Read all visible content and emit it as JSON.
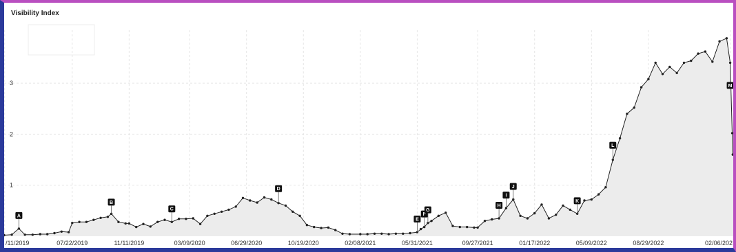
{
  "chart_data": {
    "type": "area",
    "title": "Visibility Index",
    "xlabel": "",
    "ylabel": "",
    "ylim": [
      0,
      4.2
    ],
    "yticks": [
      1,
      2,
      3
    ],
    "xlim": [
      "2019-03-10",
      "2023-02-12"
    ],
    "xtick_labels": [
      "/11/2019",
      "07/22/2019",
      "11/11/2019",
      "03/09/2020",
      "06/29/2020",
      "10/19/2020",
      "02/08/2021",
      "05/31/2021",
      "09/27/2021",
      "01/17/2022",
      "05/09/2022",
      "08/29/2022",
      "02/06/202"
    ],
    "xtick_dates": [
      "2019-03-11",
      "2019-07-22",
      "2019-11-11",
      "2020-03-09",
      "2020-06-29",
      "2020-10-19",
      "2021-02-08",
      "2021-05-31",
      "2021-09-27",
      "2022-01-17",
      "2022-05-09",
      "2022-08-29",
      "2023-02-06"
    ],
    "grid": true,
    "series": [
      {
        "color": "#222222",
        "fill": "#ececec",
        "points": [
          [
            "2019-03-10",
            0.02
          ],
          [
            "2019-03-25",
            0.03
          ],
          [
            "2019-04-08",
            0.15
          ],
          [
            "2019-04-20",
            0.03
          ],
          [
            "2019-05-05",
            0.03
          ],
          [
            "2019-05-20",
            0.04
          ],
          [
            "2019-06-03",
            0.04
          ],
          [
            "2019-06-17",
            0.06
          ],
          [
            "2019-07-01",
            0.09
          ],
          [
            "2019-07-15",
            0.08
          ],
          [
            "2019-07-22",
            0.26
          ],
          [
            "2019-08-05",
            0.28
          ],
          [
            "2019-08-19",
            0.28
          ],
          [
            "2019-09-02",
            0.32
          ],
          [
            "2019-09-16",
            0.36
          ],
          [
            "2019-09-30",
            0.38
          ],
          [
            "2019-10-07",
            0.44
          ],
          [
            "2019-10-21",
            0.28
          ],
          [
            "2019-11-04",
            0.25
          ],
          [
            "2019-11-11",
            0.25
          ],
          [
            "2019-11-25",
            0.18
          ],
          [
            "2019-12-09",
            0.24
          ],
          [
            "2019-12-23",
            0.19
          ],
          [
            "2020-01-06",
            0.28
          ],
          [
            "2020-01-20",
            0.32
          ],
          [
            "2020-02-03",
            0.28
          ],
          [
            "2020-02-17",
            0.34
          ],
          [
            "2020-03-02",
            0.34
          ],
          [
            "2020-03-16",
            0.35
          ],
          [
            "2020-03-30",
            0.24
          ],
          [
            "2020-04-13",
            0.4
          ],
          [
            "2020-04-27",
            0.44
          ],
          [
            "2020-05-11",
            0.48
          ],
          [
            "2020-05-25",
            0.52
          ],
          [
            "2020-06-08",
            0.58
          ],
          [
            "2020-06-22",
            0.75
          ],
          [
            "2020-07-06",
            0.7
          ],
          [
            "2020-07-20",
            0.66
          ],
          [
            "2020-08-03",
            0.76
          ],
          [
            "2020-08-17",
            0.72
          ],
          [
            "2020-08-31",
            0.65
          ],
          [
            "2020-09-14",
            0.6
          ],
          [
            "2020-09-28",
            0.48
          ],
          [
            "2020-10-12",
            0.4
          ],
          [
            "2020-10-26",
            0.22
          ],
          [
            "2020-11-09",
            0.18
          ],
          [
            "2020-11-23",
            0.16
          ],
          [
            "2020-12-07",
            0.17
          ],
          [
            "2020-12-21",
            0.12
          ],
          [
            "2021-01-04",
            0.05
          ],
          [
            "2021-01-18",
            0.04
          ],
          [
            "2021-02-08",
            0.04
          ],
          [
            "2021-02-22",
            0.04
          ],
          [
            "2021-03-08",
            0.05
          ],
          [
            "2021-03-22",
            0.05
          ],
          [
            "2021-04-05",
            0.04
          ],
          [
            "2021-04-19",
            0.05
          ],
          [
            "2021-05-03",
            0.05
          ],
          [
            "2021-05-17",
            0.06
          ],
          [
            "2021-05-31",
            0.08
          ],
          [
            "2021-06-07",
            0.14
          ],
          [
            "2021-06-14",
            0.18
          ],
          [
            "2021-06-21",
            0.26
          ],
          [
            "2021-06-28",
            0.3
          ],
          [
            "2021-07-12",
            0.4
          ],
          [
            "2021-07-26",
            0.46
          ],
          [
            "2021-08-09",
            0.2
          ],
          [
            "2021-08-23",
            0.18
          ],
          [
            "2021-09-06",
            0.18
          ],
          [
            "2021-09-20",
            0.17
          ],
          [
            "2021-09-27",
            0.17
          ],
          [
            "2021-10-11",
            0.3
          ],
          [
            "2021-10-25",
            0.33
          ],
          [
            "2021-11-08",
            0.35
          ],
          [
            "2021-11-22",
            0.55
          ],
          [
            "2021-12-06",
            0.72
          ],
          [
            "2021-12-20",
            0.4
          ],
          [
            "2022-01-03",
            0.35
          ],
          [
            "2022-01-17",
            0.45
          ],
          [
            "2022-01-31",
            0.62
          ],
          [
            "2022-02-14",
            0.35
          ],
          [
            "2022-02-28",
            0.42
          ],
          [
            "2022-03-14",
            0.6
          ],
          [
            "2022-03-28",
            0.52
          ],
          [
            "2022-04-11",
            0.44
          ],
          [
            "2022-04-25",
            0.7
          ],
          [
            "2022-05-09",
            0.72
          ],
          [
            "2022-05-23",
            0.82
          ],
          [
            "2022-06-06",
            0.96
          ],
          [
            "2022-06-20",
            1.5
          ],
          [
            "2022-07-04",
            1.92
          ],
          [
            "2022-07-18",
            2.4
          ],
          [
            "2022-08-01",
            2.52
          ],
          [
            "2022-08-15",
            2.92
          ],
          [
            "2022-08-29",
            3.08
          ],
          [
            "2022-09-12",
            3.4
          ],
          [
            "2022-09-26",
            3.18
          ],
          [
            "2022-10-10",
            3.32
          ],
          [
            "2022-10-24",
            3.2
          ],
          [
            "2022-11-07",
            3.4
          ],
          [
            "2022-11-21",
            3.44
          ],
          [
            "2022-12-05",
            3.58
          ],
          [
            "2022-12-19",
            3.62
          ],
          [
            "2023-01-02",
            3.42
          ],
          [
            "2023-01-16",
            3.82
          ],
          [
            "2023-01-30",
            3.88
          ],
          [
            "2023-02-06",
            3.4
          ],
          [
            "2023-02-10",
            2.02
          ],
          [
            "2023-02-11",
            1.6
          ],
          [
            "2023-02-12",
            1.6
          ]
        ]
      }
    ],
    "events": [
      {
        "label": "A",
        "date": "2019-04-08"
      },
      {
        "label": "B",
        "date": "2019-10-07"
      },
      {
        "label": "C",
        "date": "2020-02-03"
      },
      {
        "label": "D",
        "date": "2020-08-31"
      },
      {
        "label": "E",
        "date": "2021-05-31"
      },
      {
        "label": "F",
        "date": "2021-06-14"
      },
      {
        "label": "G",
        "date": "2021-06-21"
      },
      {
        "label": "H",
        "date": "2021-11-08"
      },
      {
        "label": "I",
        "date": "2021-11-22"
      },
      {
        "label": "J",
        "date": "2021-12-06"
      },
      {
        "label": "K",
        "date": "2022-04-11"
      },
      {
        "label": "L",
        "date": "2022-06-20"
      },
      {
        "label": "M",
        "date": "2023-02-06"
      }
    ]
  }
}
